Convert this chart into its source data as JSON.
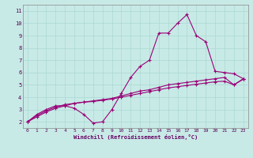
{
  "title": "",
  "xlabel": "Windchill (Refroidissement éolien,°C)",
  "ylabel": "",
  "bg_color": "#c8eae6",
  "line_color": "#990077",
  "grid_color": "#aad8d4",
  "axis_label_color": "#660066",
  "tick_color": "#550055",
  "xlim": [
    -0.5,
    23.5
  ],
  "ylim": [
    1.5,
    11.5
  ],
  "xticks": [
    0,
    1,
    2,
    3,
    4,
    5,
    6,
    7,
    8,
    9,
    10,
    11,
    12,
    13,
    14,
    15,
    16,
    17,
    18,
    19,
    20,
    21,
    22,
    23
  ],
  "yticks": [
    2,
    3,
    4,
    5,
    6,
    7,
    8,
    9,
    10,
    11
  ],
  "line1_x": [
    0,
    1,
    2,
    3,
    4,
    5,
    6,
    7,
    8,
    9,
    10,
    11,
    12,
    13,
    14,
    15,
    16,
    17,
    18,
    19,
    20,
    21,
    22,
    23
  ],
  "line1_y": [
    2.0,
    2.6,
    3.0,
    3.3,
    3.3,
    3.1,
    2.6,
    1.9,
    2.0,
    3.0,
    4.3,
    5.6,
    6.5,
    7.0,
    9.2,
    9.2,
    10.0,
    10.7,
    9.0,
    8.5,
    6.1,
    6.0,
    5.9,
    5.5
  ],
  "line2_x": [
    0,
    1,
    2,
    3,
    4,
    5,
    6,
    7,
    8,
    9,
    10,
    11,
    12,
    13,
    14,
    15,
    16,
    17,
    18,
    19,
    20,
    21,
    22,
    23
  ],
  "line2_y": [
    2.0,
    2.4,
    2.8,
    3.1,
    3.3,
    3.5,
    3.6,
    3.65,
    3.75,
    3.85,
    4.0,
    4.15,
    4.3,
    4.45,
    4.6,
    4.75,
    4.85,
    4.95,
    5.05,
    5.15,
    5.25,
    5.3,
    5.0,
    5.45
  ],
  "line3_x": [
    0,
    1,
    2,
    3,
    4,
    5,
    6,
    7,
    8,
    9,
    10,
    11,
    12,
    13,
    14,
    15,
    16,
    17,
    18,
    19,
    20,
    21,
    22,
    23
  ],
  "line3_y": [
    2.0,
    2.5,
    2.9,
    3.2,
    3.4,
    3.5,
    3.6,
    3.7,
    3.8,
    3.9,
    4.1,
    4.3,
    4.5,
    4.6,
    4.8,
    5.0,
    5.1,
    5.2,
    5.3,
    5.4,
    5.5,
    5.6,
    5.0,
    5.5
  ]
}
